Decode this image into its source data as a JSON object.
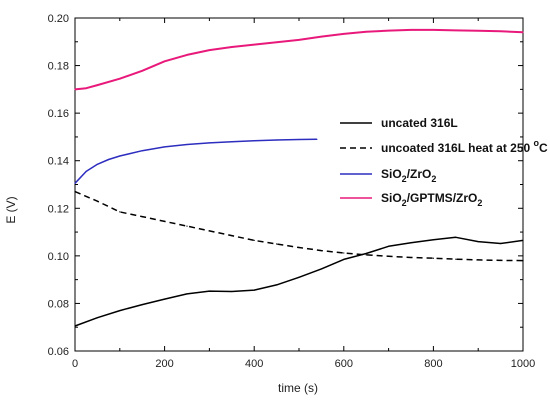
{
  "chart_data": {
    "type": "line",
    "title": "",
    "xlabel": "time (s)",
    "ylabel": "E (V)",
    "xlim": [
      0,
      1000
    ],
    "ylim": [
      0.06,
      0.2
    ],
    "x_ticks": [
      0,
      200,
      400,
      600,
      800,
      1000
    ],
    "y_ticks": [
      0.06,
      0.08,
      0.1,
      0.12,
      0.14,
      0.16,
      0.18,
      0.2
    ],
    "x_tick_labels": [
      "0",
      "200",
      "400",
      "600",
      "800",
      "1000"
    ],
    "y_tick_labels": [
      "0.06",
      "0.08",
      "0.10",
      "0.12",
      "0.14",
      "0.16",
      "0.18",
      "0.20"
    ],
    "grid": false,
    "legend_position": "right-middle",
    "series": [
      {
        "name": "uncated 316L",
        "color": "#000000",
        "style": "solid",
        "x": [
          0,
          50,
          100,
          150,
          200,
          250,
          300,
          350,
          400,
          450,
          500,
          550,
          600,
          650,
          700,
          750,
          800,
          850,
          900,
          950,
          1000
        ],
        "y": [
          0.0705,
          0.074,
          0.077,
          0.0795,
          0.0818,
          0.084,
          0.0852,
          0.085,
          0.0856,
          0.0878,
          0.091,
          0.0945,
          0.0985,
          0.101,
          0.104,
          0.1055,
          0.1068,
          0.1078,
          0.106,
          0.1052,
          0.1065
        ]
      },
      {
        "name": "uncoated 316L heat at 250 °C",
        "name_main": "uncoated 316L heat at 250 ",
        "name_sup": "o",
        "name_end": "C",
        "color": "#000000",
        "style": "dashed",
        "x": [
          0,
          50,
          100,
          150,
          200,
          250,
          300,
          350,
          400,
          450,
          500,
          550,
          600,
          650,
          700,
          750,
          800,
          850,
          900,
          950,
          1000
        ],
        "y": [
          0.127,
          0.123,
          0.1185,
          0.1165,
          0.1145,
          0.1125,
          0.1105,
          0.1085,
          0.1065,
          0.105,
          0.1035,
          0.1022,
          0.1012,
          0.1004,
          0.0998,
          0.0993,
          0.099,
          0.0986,
          0.0983,
          0.0981,
          0.098
        ]
      },
      {
        "name": "SiO2/ZrO2",
        "name_parts": [
          "SiO",
          "2",
          "/ZrO",
          "2"
        ],
        "color": "#2d2dbf",
        "style": "solid",
        "x": [
          0,
          25,
          50,
          75,
          100,
          150,
          200,
          250,
          300,
          350,
          400,
          450,
          500,
          540
        ],
        "y": [
          0.1305,
          0.1355,
          0.1385,
          0.1405,
          0.142,
          0.1442,
          0.1458,
          0.1468,
          0.1475,
          0.148,
          0.1484,
          0.1487,
          0.1489,
          0.149
        ]
      },
      {
        "name": "SiO2/GPTMS/ZrO2",
        "name_parts": [
          "SiO",
          "2",
          "/GPTMS/ZrO",
          "2"
        ],
        "color": "#e8197a",
        "style": "solid",
        "x": [
          0,
          25,
          50,
          100,
          150,
          200,
          250,
          300,
          350,
          400,
          450,
          500,
          550,
          600,
          650,
          700,
          750,
          800,
          850,
          900,
          950,
          1000
        ],
        "y": [
          0.17,
          0.1705,
          0.1718,
          0.1745,
          0.1778,
          0.1818,
          0.1845,
          0.1865,
          0.1878,
          0.1888,
          0.1898,
          0.1908,
          0.1922,
          0.1933,
          0.1942,
          0.1947,
          0.195,
          0.195,
          0.1948,
          0.1946,
          0.1944,
          0.194
        ]
      }
    ]
  }
}
